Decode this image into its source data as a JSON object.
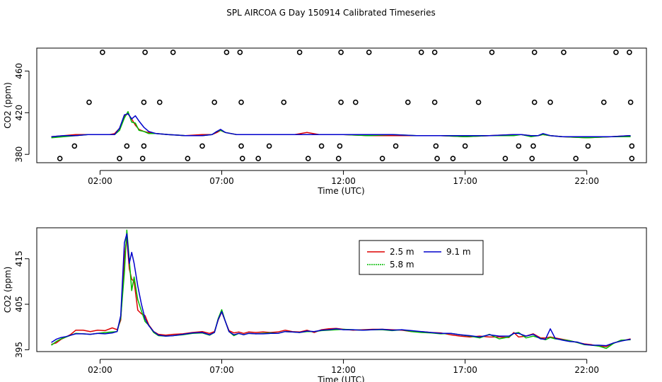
{
  "title": "SPL AIRCOA G  Day 150914  Calibrated Timeseries",
  "colors": {
    "s25": "#dd0000",
    "s58": "#00bb00",
    "s91": "#0000cc",
    "axis": "#000000"
  },
  "chart_data": [
    {
      "type": "line",
      "name": "upper-panel",
      "xlabel": "Time (UTC)",
      "ylabel": "CO2 (ppm)",
      "xlim": [
        -0.6,
        24.45
      ],
      "ylim": [
        372,
        482
      ],
      "xticks": [
        2,
        7,
        12,
        17,
        22
      ],
      "xtick_labels": [
        "02:00",
        "07:00",
        "12:00",
        "17:00",
        "22:00"
      ],
      "yticks": [
        380,
        420,
        460
      ],
      "ytick_labels": [
        "380",
        "420",
        "460"
      ],
      "markers": {
        "style": "open-circle",
        "rows": [
          {
            "y": 478,
            "x": [
              2.1,
              3.85,
              5.0,
              7.2,
              7.75,
              10.2,
              11.9,
              13.05,
              15.2,
              15.75,
              18.1,
              19.85,
              21.05,
              23.2,
              23.75
            ]
          },
          {
            "y": 430,
            "x": [
              1.55,
              3.8,
              4.45,
              6.7,
              7.8,
              9.55,
              11.9,
              12.5,
              14.65,
              15.75,
              17.55,
              19.85,
              20.5,
              22.7,
              23.8
            ]
          },
          {
            "y": 388,
            "x": [
              0.95,
              3.1,
              3.8,
              6.2,
              7.8,
              8.95,
              11.1,
              11.85,
              14.15,
              15.8,
              17.0,
              19.2,
              19.8,
              22.05,
              23.85
            ]
          },
          {
            "y": 376,
            "x": [
              0.35,
              2.8,
              3.75,
              5.6,
              7.85,
              8.5,
              10.55,
              11.8,
              13.6,
              15.85,
              16.5,
              18.65,
              19.75,
              21.55,
              23.85
            ]
          }
        ]
      },
      "series": [
        {
          "name": "2.5 m",
          "x": [
            0,
            0.5,
            1,
            1.5,
            2,
            2.4,
            2.6,
            2.8,
            3.0,
            3.15,
            3.3,
            3.45,
            3.6,
            3.8,
            4.0,
            4.3,
            4.8,
            5.5,
            6.2,
            6.6,
            6.8,
            6.95,
            7.15,
            7.6,
            8,
            9,
            10,
            10.5,
            11,
            12,
            13,
            14,
            15,
            16,
            17,
            18,
            19,
            19.3,
            19.7,
            20,
            20.2,
            20.5,
            21,
            22,
            23,
            23.8
          ],
          "values": [
            397,
            398,
            399,
            399,
            399,
            399,
            400,
            405,
            417,
            419,
            414,
            408,
            404,
            402,
            401,
            400,
            399,
            398,
            399,
            399,
            401,
            403,
            401,
            399,
            399,
            399,
            399,
            401,
            399,
            399,
            398,
            398,
            398,
            398,
            397,
            398,
            399,
            399,
            398,
            398,
            399,
            398,
            397,
            396,
            397,
            398
          ]
        },
        {
          "name": "5.8 m",
          "x": [
            0,
            0.5,
            1,
            1.5,
            2,
            2.4,
            2.6,
            2.8,
            3.0,
            3.15,
            3.3,
            3.45,
            3.6,
            3.8,
            4.0,
            4.3,
            4.8,
            5.5,
            6.2,
            6.6,
            6.8,
            6.95,
            7.15,
            7.6,
            8,
            9,
            10,
            10.5,
            11,
            12,
            13,
            14,
            15,
            16,
            17,
            18,
            19,
            19.3,
            19.7,
            20,
            20.2,
            20.5,
            21,
            22,
            23,
            23.8
          ],
          "values": [
            396,
            397,
            398,
            399,
            399,
            399,
            399,
            403,
            415,
            421,
            411,
            410,
            403,
            402,
            400,
            400,
            399,
            398,
            398,
            399,
            402,
            403,
            401,
            399,
            399,
            399,
            399,
            399,
            399,
            399,
            398,
            399,
            398,
            398,
            397,
            398,
            398,
            399,
            397,
            398,
            399,
            398,
            397,
            396,
            397,
            397
          ]
        },
        {
          "name": "9.1 m",
          "x": [
            0,
            0.5,
            1,
            1.5,
            2,
            2.4,
            2.6,
            2.8,
            3.0,
            3.15,
            3.3,
            3.45,
            3.6,
            3.8,
            4.0,
            4.3,
            4.8,
            5.5,
            6.2,
            6.6,
            6.8,
            6.95,
            7.15,
            7.6,
            8,
            9,
            10,
            10.5,
            11,
            12,
            13,
            14,
            15,
            16,
            17,
            18,
            19,
            19.3,
            19.7,
            20,
            20.2,
            20.5,
            21,
            22,
            23,
            23.8
          ],
          "values": [
            397,
            398,
            398,
            399,
            399,
            399,
            399,
            405,
            418,
            419,
            414,
            417,
            412,
            406,
            402,
            400,
            399,
            398,
            398,
            399,
            402,
            404,
            401,
            399,
            399,
            399,
            399,
            399,
            399,
            399,
            399,
            399,
            398,
            398,
            398,
            398,
            399,
            399,
            398,
            398,
            400,
            398,
            397,
            397,
            397,
            398
          ]
        }
      ]
    },
    {
      "type": "line",
      "name": "lower-panel",
      "xlabel": "Time (UTC)",
      "ylabel": "CO2 (ppm)",
      "xlim": [
        -0.6,
        24.45
      ],
      "ylim": [
        394.6,
        421.8
      ],
      "xticks": [
        2,
        7,
        12,
        17,
        22
      ],
      "xtick_labels": [
        "02:00",
        "07:00",
        "12:00",
        "17:00",
        "22:00"
      ],
      "yticks": [
        395,
        405,
        415
      ],
      "ytick_labels": [
        "395",
        "405",
        "415"
      ],
      "legend": {
        "position": "top-right",
        "entries": [
          "2.5 m",
          "5.8 m",
          "9.1 m"
        ]
      },
      "series": [
        {
          "name": "2.5 m",
          "x": [
            0,
            0.2,
            0.4,
            0.6,
            0.8,
            1.0,
            1.3,
            1.6,
            1.9,
            2.2,
            2.5,
            2.7,
            2.85,
            3.0,
            3.1,
            3.2,
            3.3,
            3.4,
            3.55,
            3.7,
            3.85,
            4.0,
            4.2,
            4.4,
            4.7,
            5.0,
            5.4,
            5.8,
            6.2,
            6.5,
            6.7,
            6.85,
            7.0,
            7.15,
            7.3,
            7.5,
            7.7,
            7.9,
            8.1,
            8.4,
            8.7,
            9.0,
            9.3,
            9.6,
            9.9,
            10.2,
            10.5,
            10.8,
            11.1,
            11.4,
            11.7,
            12.0,
            12.4,
            12.8,
            13.2,
            13.6,
            14.0,
            14.4,
            14.8,
            15.2,
            15.6,
            16.0,
            16.4,
            16.8,
            17.2,
            17.6,
            18.0,
            18.4,
            18.8,
            19.0,
            19.2,
            19.5,
            19.8,
            20.1,
            20.3,
            20.5,
            20.7,
            21.0,
            21.3,
            21.6,
            21.9,
            22.2,
            22.5,
            22.8,
            23.1,
            23.4,
            23.8
          ],
          "values": [
            396.2,
            396.5,
            397.3,
            397.8,
            398.4,
            399.3,
            399.3,
            399.0,
            399.3,
            399.2,
            399.8,
            399.4,
            401.5,
            415.5,
            419.6,
            412.8,
            410.5,
            410.0,
            403.7,
            402.9,
            402.5,
            400.5,
            399.0,
            398.4,
            398.2,
            398.4,
            398.5,
            398.8,
            399.0,
            398.6,
            399.0,
            401.5,
            403.3,
            401.2,
            399.2,
            398.7,
            398.9,
            398.6,
            398.9,
            398.8,
            398.9,
            398.8,
            398.9,
            399.3,
            399.0,
            398.9,
            399.3,
            398.8,
            399.4,
            399.6,
            399.7,
            399.5,
            399.3,
            399.4,
            399.5,
            399.5,
            399.4,
            399.3,
            399.0,
            399.0,
            398.8,
            398.7,
            398.3,
            398.0,
            397.8,
            398.0,
            397.8,
            397.8,
            397.7,
            398.8,
            397.8,
            398.0,
            398.5,
            397.6,
            397.6,
            397.8,
            397.6,
            397.3,
            397.0,
            396.6,
            396.3,
            396.1,
            395.8,
            395.7,
            396.5,
            396.9,
            397.4
          ]
        },
        {
          "name": "5.8 m",
          "x": [
            0,
            0.2,
            0.4,
            0.6,
            0.8,
            1.0,
            1.3,
            1.6,
            1.9,
            2.2,
            2.5,
            2.7,
            2.85,
            3.0,
            3.1,
            3.2,
            3.3,
            3.4,
            3.55,
            3.7,
            3.85,
            4.0,
            4.2,
            4.4,
            4.7,
            5.0,
            5.4,
            5.8,
            6.2,
            6.5,
            6.7,
            6.85,
            7.0,
            7.15,
            7.3,
            7.5,
            7.7,
            7.9,
            8.1,
            8.4,
            8.7,
            9.0,
            9.3,
            9.6,
            9.9,
            10.2,
            10.5,
            10.8,
            11.1,
            11.4,
            11.7,
            12.0,
            12.4,
            12.8,
            13.2,
            13.6,
            14.0,
            14.4,
            14.8,
            15.2,
            15.6,
            16.0,
            16.4,
            16.8,
            17.2,
            17.6,
            18.0,
            18.4,
            18.8,
            19.0,
            19.2,
            19.5,
            19.8,
            20.1,
            20.3,
            20.5,
            20.7,
            21.0,
            21.3,
            21.6,
            21.9,
            22.2,
            22.5,
            22.8,
            23.1,
            23.4,
            23.8
          ],
          "values": [
            396.0,
            396.8,
            397.4,
            397.8,
            398.2,
            398.6,
            398.5,
            398.4,
            398.6,
            398.8,
            398.9,
            399.0,
            402.0,
            412.0,
            421.3,
            414.8,
            408.0,
            411.0,
            406.0,
            403.5,
            401.2,
            400.4,
            398.8,
            398.1,
            398.0,
            398.1,
            398.3,
            398.6,
            398.7,
            398.2,
            398.8,
            401.8,
            403.8,
            401.2,
            399.0,
            398.1,
            398.6,
            398.3,
            398.6,
            398.5,
            398.6,
            398.7,
            398.6,
            399.0,
            398.9,
            398.8,
            399.0,
            399.0,
            399.2,
            399.3,
            399.4,
            399.5,
            399.4,
            399.3,
            399.4,
            399.4,
            399.2,
            399.4,
            399.0,
            398.8,
            398.7,
            398.5,
            398.6,
            398.3,
            398.0,
            397.6,
            398.4,
            397.4,
            397.8,
            398.6,
            398.8,
            397.6,
            398.0,
            397.5,
            397.2,
            397.7,
            397.4,
            397.2,
            397.0,
            396.6,
            396.1,
            396.0,
            395.8,
            395.3,
            396.4,
            397.1,
            397.2
          ]
        },
        {
          "name": "9.1 m",
          "x": [
            0,
            0.2,
            0.4,
            0.6,
            0.8,
            1.0,
            1.3,
            1.6,
            1.9,
            2.2,
            2.5,
            2.7,
            2.85,
            3.0,
            3.1,
            3.2,
            3.3,
            3.4,
            3.55,
            3.7,
            3.85,
            4.0,
            4.2,
            4.4,
            4.7,
            5.0,
            5.4,
            5.8,
            6.2,
            6.5,
            6.7,
            6.85,
            7.0,
            7.15,
            7.3,
            7.5,
            7.7,
            7.9,
            8.1,
            8.4,
            8.7,
            9.0,
            9.3,
            9.6,
            9.9,
            10.2,
            10.5,
            10.8,
            11.1,
            11.4,
            11.7,
            12.0,
            12.4,
            12.8,
            13.2,
            13.6,
            14.0,
            14.4,
            14.8,
            15.2,
            15.6,
            16.0,
            16.4,
            16.8,
            17.2,
            17.6,
            18.0,
            18.4,
            18.8,
            19.0,
            19.2,
            19.5,
            19.8,
            20.1,
            20.3,
            20.5,
            20.7,
            21.0,
            21.3,
            21.6,
            21.9,
            22.2,
            22.5,
            22.8,
            23.1,
            23.4,
            23.8
          ],
          "values": [
            396.6,
            397.3,
            397.7,
            397.9,
            398.2,
            398.5,
            398.5,
            398.4,
            398.6,
            398.5,
            398.7,
            399.0,
            402.5,
            418.5,
            420.5,
            414.0,
            416.4,
            414.0,
            409.0,
            405.0,
            401.8,
            400.3,
            399.0,
            398.2,
            398.0,
            398.1,
            398.4,
            398.7,
            398.8,
            398.3,
            398.8,
            401.6,
            403.4,
            401.2,
            399.0,
            398.3,
            398.6,
            398.3,
            398.6,
            398.5,
            398.5,
            398.6,
            398.6,
            399.0,
            398.9,
            398.8,
            399.1,
            399.0,
            399.3,
            399.4,
            399.6,
            399.4,
            399.4,
            399.3,
            399.4,
            399.5,
            399.3,
            399.4,
            399.2,
            399.0,
            398.8,
            398.6,
            398.6,
            398.3,
            398.1,
            397.8,
            398.3,
            398.0,
            398.0,
            398.6,
            398.6,
            398.0,
            398.4,
            397.4,
            397.3,
            399.6,
            397.5,
            397.1,
            396.8,
            396.7,
            396.2,
            396.0,
            396.0,
            395.9,
            396.5,
            396.9,
            397.3
          ]
        }
      ]
    }
  ]
}
